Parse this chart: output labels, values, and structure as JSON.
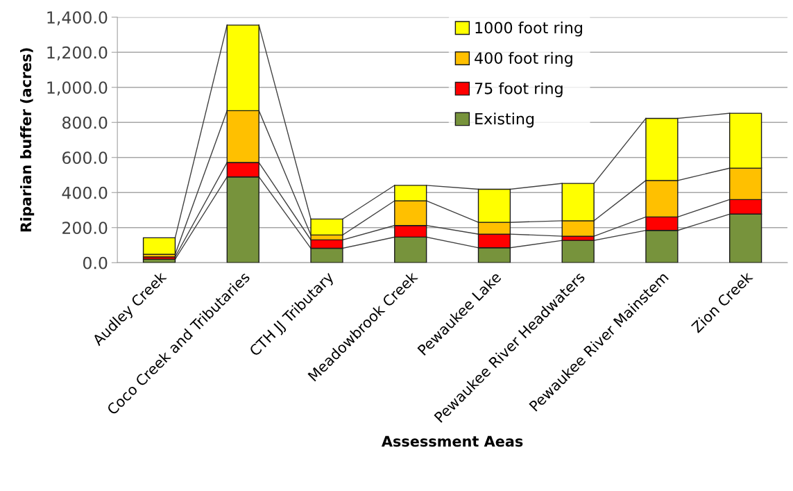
{
  "chart_data": {
    "type": "bar",
    "stacked": true,
    "xlabel": "Assessment Aeas",
    "ylabel": "Riparian buffer (acres)",
    "categories": [
      "Audley Creek",
      "Coco Creek and Tributaries",
      "CTH JJ Tributary",
      "Meadowbrook Creek",
      "Pewaukee Lake",
      "Pewaukee River Headwaters",
      "Pewaukee River Mainstem",
      "Zion Creek"
    ],
    "series": [
      {
        "name": "Existing",
        "color": "#77933c",
        "values": [
          20,
          489,
          82,
          146,
          85,
          127,
          184,
          277
        ]
      },
      {
        "name": "75 foot ring",
        "color": "#ff0000",
        "values": [
          13,
          82,
          48,
          66,
          78,
          24,
          77,
          83
        ]
      },
      {
        "name": "400 foot ring",
        "color": "#ffc000",
        "values": [
          15,
          296,
          28,
          141,
          67,
          88,
          208,
          179
        ]
      },
      {
        "name": "1000 foot ring",
        "color": "#ffff00",
        "values": [
          94,
          488,
          91,
          88,
          189,
          213,
          354,
          313
        ]
      }
    ],
    "ylim": [
      0,
      1400
    ],
    "yticks": [
      {
        "value": 0,
        "label": "0.0"
      },
      {
        "value": 200,
        "label": "200.0"
      },
      {
        "value": 400,
        "label": "400.0"
      },
      {
        "value": 600,
        "label": "600.0"
      },
      {
        "value": 800,
        "label": "800.0"
      },
      {
        "value": 1000,
        "label": "1,000.0"
      },
      {
        "value": 1200,
        "label": "1,200.0"
      },
      {
        "value": 1400,
        "label": "1,400.0"
      }
    ],
    "grid": "y",
    "legend": "top"
  }
}
